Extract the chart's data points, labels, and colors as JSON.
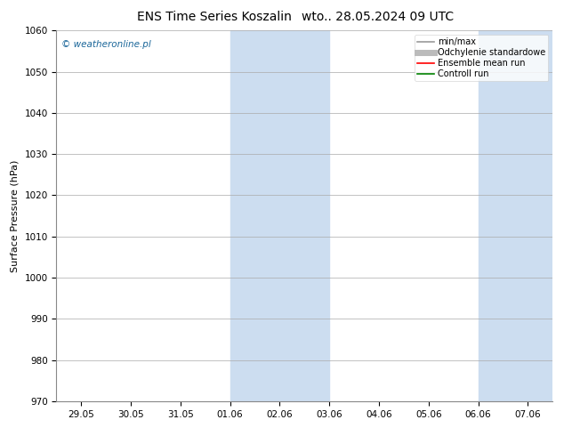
{
  "title": "ENS Time Series Koszalin",
  "title_right": "wto.. 28.05.2024 09 UTC",
  "ylabel": "Surface Pressure (hPa)",
  "ylim": [
    970,
    1060
  ],
  "yticks": [
    970,
    980,
    990,
    1000,
    1010,
    1020,
    1030,
    1040,
    1050,
    1060
  ],
  "x_tick_positions": [
    0,
    1,
    2,
    3,
    4,
    5,
    6,
    7,
    8,
    9
  ],
  "x_tick_labels": [
    "29.05",
    "30.05",
    "31.05",
    "01.06",
    "02.06",
    "03.06",
    "04.06",
    "05.06",
    "06.06",
    "07.06"
  ],
  "xlim": [
    -0.5,
    9.5
  ],
  "shaded_bands": [
    {
      "start": 3.0,
      "end": 5.0
    },
    {
      "start": 8.0,
      "end": 9.5
    }
  ],
  "shade_color": "#ccddf0",
  "watermark": "© weatheronline.pl",
  "watermark_color": "#1a6699",
  "legend_entries": [
    {
      "label": "min/max",
      "color": "#999999",
      "lw": 1.2,
      "linestyle": "-"
    },
    {
      "label": "Odchylenie standardowe",
      "color": "#bbbbbb",
      "lw": 5,
      "linestyle": "-"
    },
    {
      "label": "Ensemble mean run",
      "color": "red",
      "lw": 1.2,
      "linestyle": "-"
    },
    {
      "label": "Controll run",
      "color": "green",
      "lw": 1.2,
      "linestyle": "-"
    }
  ],
  "background_color": "#ffffff",
  "grid_color": "#aaaaaa",
  "title_fontsize": 10,
  "tick_fontsize": 7.5,
  "ylabel_fontsize": 8,
  "watermark_fontsize": 7.5
}
